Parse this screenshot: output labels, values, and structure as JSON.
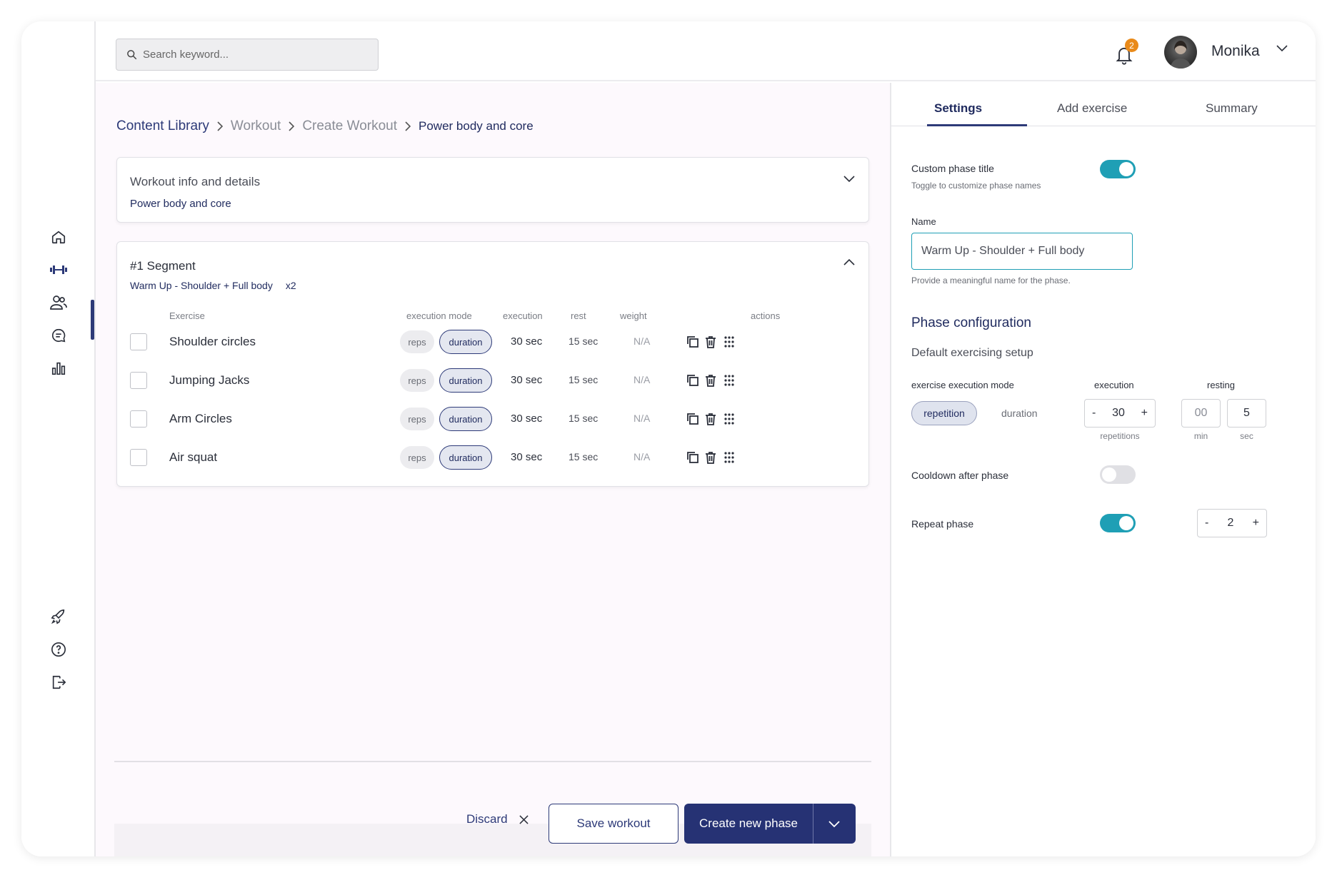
{
  "search": {
    "placeholder": "Search keyword..."
  },
  "header": {
    "notification_count": "2",
    "username": "Monika"
  },
  "breadcrumb": [
    "Content Library",
    "Workout",
    "Create Workout",
    "Power body and core"
  ],
  "workout_info": {
    "title": "Workout info and details",
    "subtitle": "Power body and core"
  },
  "segment": {
    "title": "#1 Segment",
    "subtitle": "Warm Up - Shoulder + Full body",
    "repeat": "x2",
    "columns": {
      "exercise": "Exercise",
      "mode": "execution mode",
      "execution": "execution",
      "rest": "rest",
      "weight": "weight",
      "actions": "actions"
    },
    "rows": [
      {
        "name": "Shoulder circles",
        "reps": "reps",
        "duration": "duration",
        "execution": "30 sec",
        "rest": "15 sec",
        "weight": "N/A"
      },
      {
        "name": "Jumping Jacks",
        "reps": "reps",
        "duration": "duration",
        "execution": "30 sec",
        "rest": "15 sec",
        "weight": "N/A"
      },
      {
        "name": "Arm Circles",
        "reps": "reps",
        "duration": "duration",
        "execution": "30 sec",
        "rest": "15 sec",
        "weight": "N/A"
      },
      {
        "name": "Air squat",
        "reps": "reps",
        "duration": "duration",
        "execution": "30 sec",
        "rest": "15 sec",
        "weight": "N/A"
      }
    ]
  },
  "footer": {
    "discard": "Discard",
    "save": "Save workout",
    "create": "Create new phase"
  },
  "panel": {
    "tabs": [
      "Settings",
      "Add exercise",
      "Summary"
    ],
    "custom_title": {
      "label": "Custom phase title",
      "hint": "Toggle to customize phase names",
      "enabled": true
    },
    "name": {
      "label": "Name",
      "value": "Warm Up - Shoulder + Full body",
      "hint": "Provide a meaningful name for the phase."
    },
    "phase_config": "Phase configuration",
    "default_setup": "Default exercising setup",
    "exec_mode_label": "exercise execution mode",
    "mode_selected": "repetition",
    "mode_other": "duration",
    "execution": {
      "label": "execution",
      "minus": "-",
      "value": "30",
      "plus": "+",
      "unit": "repetitions"
    },
    "resting": {
      "label": "resting",
      "min_value": "00",
      "min_unit": "min",
      "sec_value": "5",
      "sec_unit": "sec"
    },
    "cooldown": {
      "label": "Cooldown after phase",
      "enabled": false
    },
    "repeat": {
      "label": "Repeat phase",
      "enabled": true,
      "minus": "-",
      "value": "2",
      "plus": "+"
    }
  },
  "colors": {
    "primary": "#263274",
    "accent": "#1f9fb5",
    "badge": "#e98a1a"
  }
}
